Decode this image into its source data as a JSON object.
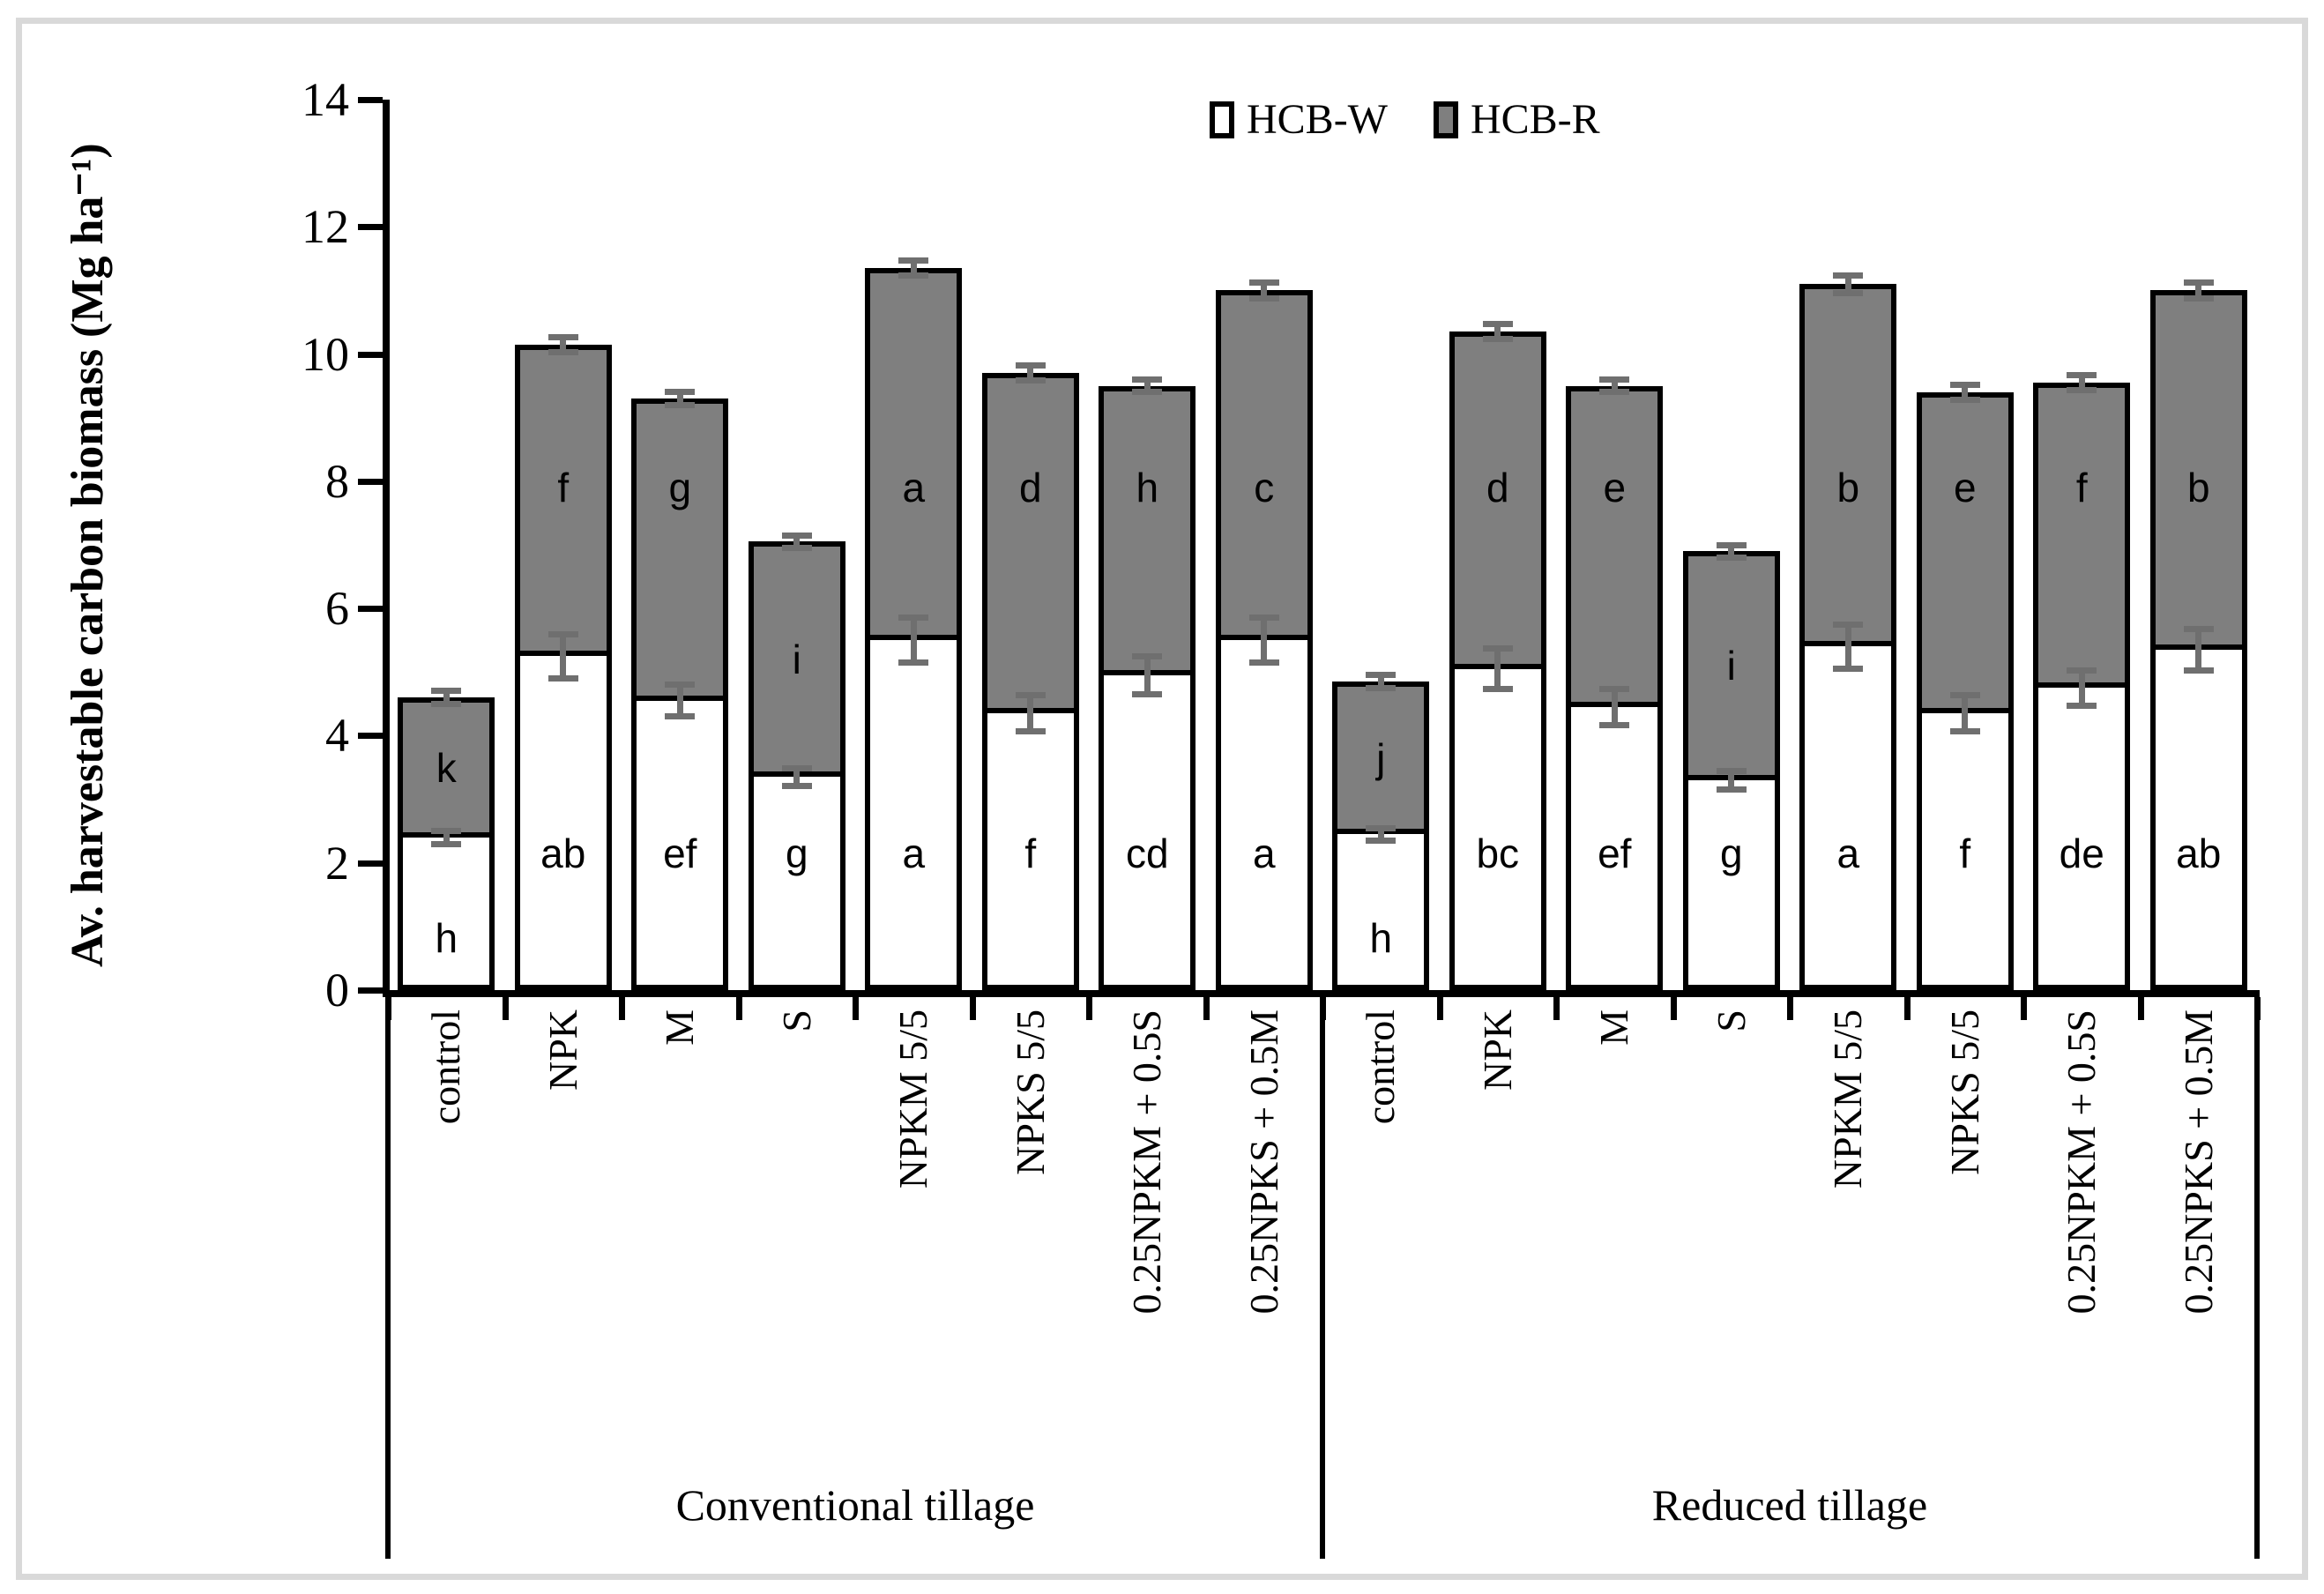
{
  "chart_data": {
    "type": "bar",
    "subtype": "stacked-column",
    "title": "",
    "ylabel": "Av. harvestable carbon biomass (Mg ha⁻¹)",
    "ylim": [
      0,
      14
    ],
    "y_ticks": [
      0,
      2,
      4,
      6,
      8,
      10,
      12,
      14
    ],
    "grid": false,
    "legend_position": "top",
    "legend": [
      {
        "name": "HCB-W",
        "color": "#ffffff"
      },
      {
        "name": "HCB-R",
        "color": "#7f7f7f"
      }
    ],
    "series_note": "HCB-W is the lower white segment, HCB-R is the upper gray segment; letters are significance groups printed inside segments; error bars at top of white segment and at top of stacked total",
    "groups": [
      {
        "label": "Conventional tillage",
        "bars": [
          {
            "category": "control",
            "hcb_w": 2.4,
            "hcb_r": 2.2,
            "w_err": 0.1,
            "t_err": 0.1,
            "w_letter": "h",
            "r_letter": "k"
          },
          {
            "category": "NPK",
            "hcb_w": 5.25,
            "hcb_r": 4.9,
            "w_err": 0.35,
            "t_err": 0.12,
            "w_letter": "ab",
            "r_letter": "f"
          },
          {
            "category": "M",
            "hcb_w": 4.55,
            "hcb_r": 4.75,
            "w_err": 0.25,
            "t_err": 0.1,
            "w_letter": "ef",
            "r_letter": "g"
          },
          {
            "category": "S",
            "hcb_w": 3.35,
            "hcb_r": 3.7,
            "w_err": 0.14,
            "t_err": 0.1,
            "w_letter": "g",
            "r_letter": "i"
          },
          {
            "category": "NPKM 5/5",
            "hcb_w": 5.5,
            "hcb_r": 5.85,
            "w_err": 0.35,
            "t_err": 0.12,
            "w_letter": "a",
            "r_letter": "a"
          },
          {
            "category": "NPKS 5/5",
            "hcb_w": 4.35,
            "hcb_r": 5.35,
            "w_err": 0.28,
            "t_err": 0.12,
            "w_letter": "f",
            "r_letter": "d"
          },
          {
            "category": "0.25NPKM + 0.5S",
            "hcb_w": 4.95,
            "hcb_r": 4.55,
            "w_err": 0.3,
            "t_err": 0.1,
            "w_letter": "cd",
            "r_letter": "h"
          },
          {
            "category": "0.25NPKS + 0.5M",
            "hcb_w": 5.5,
            "hcb_r": 5.5,
            "w_err": 0.35,
            "t_err": 0.12,
            "w_letter": "a",
            "r_letter": "c"
          }
        ]
      },
      {
        "label": "Reduced tillage",
        "bars": [
          {
            "category": "control",
            "hcb_w": 2.45,
            "hcb_r": 2.4,
            "w_err": 0.1,
            "t_err": 0.1,
            "w_letter": "h",
            "r_letter": "j"
          },
          {
            "category": "NPK",
            "hcb_w": 5.05,
            "hcb_r": 5.3,
            "w_err": 0.32,
            "t_err": 0.12,
            "w_letter": "bc",
            "r_letter": "d"
          },
          {
            "category": "M",
            "hcb_w": 4.45,
            "hcb_r": 5.05,
            "w_err": 0.28,
            "t_err": 0.1,
            "w_letter": "ef",
            "r_letter": "e"
          },
          {
            "category": "S",
            "hcb_w": 3.3,
            "hcb_r": 3.6,
            "w_err": 0.14,
            "t_err": 0.1,
            "w_letter": "g",
            "r_letter": "i"
          },
          {
            "category": "NPKM 5/5",
            "hcb_w": 5.4,
            "hcb_r": 5.7,
            "w_err": 0.35,
            "t_err": 0.14,
            "w_letter": "a",
            "r_letter": "b"
          },
          {
            "category": "NPKS 5/5",
            "hcb_w": 4.35,
            "hcb_r": 5.05,
            "w_err": 0.28,
            "t_err": 0.12,
            "w_letter": "f",
            "r_letter": "e"
          },
          {
            "category": "0.25NPKM + 0.5S",
            "hcb_w": 4.75,
            "hcb_r": 4.8,
            "w_err": 0.28,
            "t_err": 0.12,
            "w_letter": "de",
            "r_letter": "f"
          },
          {
            "category": "0.25NPKS + 0.5M",
            "hcb_w": 5.35,
            "hcb_r": 5.65,
            "w_err": 0.32,
            "t_err": 0.12,
            "w_letter": "ab",
            "r_letter": "b"
          }
        ]
      }
    ],
    "colors": {
      "bar_white": "#ffffff",
      "bar_gray": "#7f7f7f",
      "error_bar": "#6f6f6f",
      "axis": "#000000",
      "frame": "#d9d9d9"
    }
  }
}
